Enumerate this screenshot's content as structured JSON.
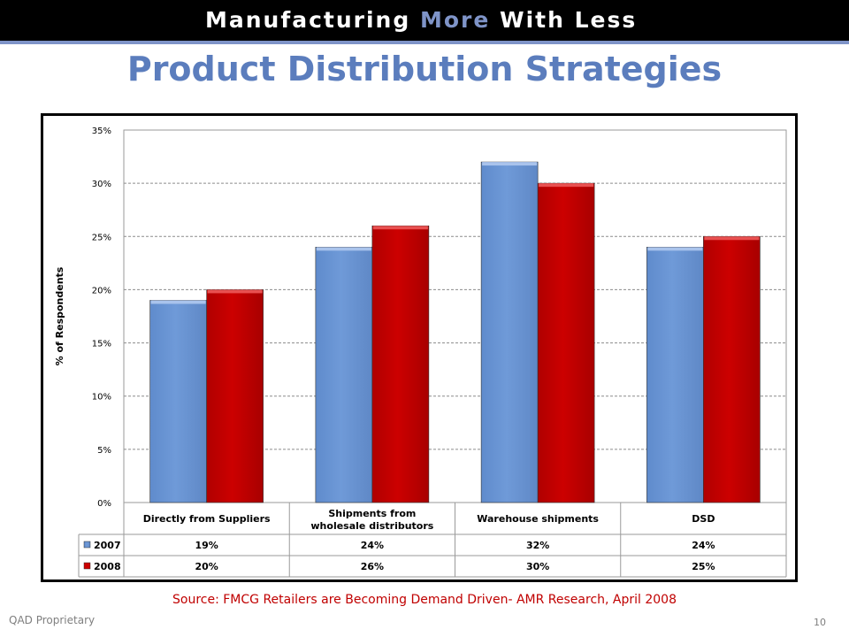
{
  "header": {
    "banner_part1": "Manufacturing ",
    "banner_accent": "More",
    "banner_part2": " With Less",
    "title": "Product Distribution Strategies"
  },
  "footer": {
    "source": "Source: FMCG Retailers are Becoming Demand Driven- AMR Research, April 2008",
    "left": "QAD Proprietary",
    "page": "10"
  },
  "colors": {
    "series_2007": "#6f9ad8",
    "series_2008": "#cc0000",
    "title": "#5b7dbd",
    "banner_accent": "#7f94c8",
    "source": "#c00000"
  },
  "chart_data": {
    "type": "bar",
    "ylabel": "% of Respondents",
    "ylim": [
      0,
      35
    ],
    "yticks": [
      "0%",
      "5%",
      "10%",
      "15%",
      "20%",
      "25%",
      "30%",
      "35%"
    ],
    "categories": [
      "Directly from Suppliers",
      "Shipments from wholesale distributors",
      "Warehouse shipments",
      "DSD"
    ],
    "series": [
      {
        "name": "2007",
        "values": [
          19,
          24,
          32,
          24
        ],
        "labels": [
          "19%",
          "24%",
          "32%",
          "24%"
        ]
      },
      {
        "name": "2008",
        "values": [
          20,
          26,
          30,
          25
        ],
        "labels": [
          "20%",
          "26%",
          "30%",
          "25%"
        ]
      }
    ],
    "grid": true,
    "legend": "data-table"
  }
}
